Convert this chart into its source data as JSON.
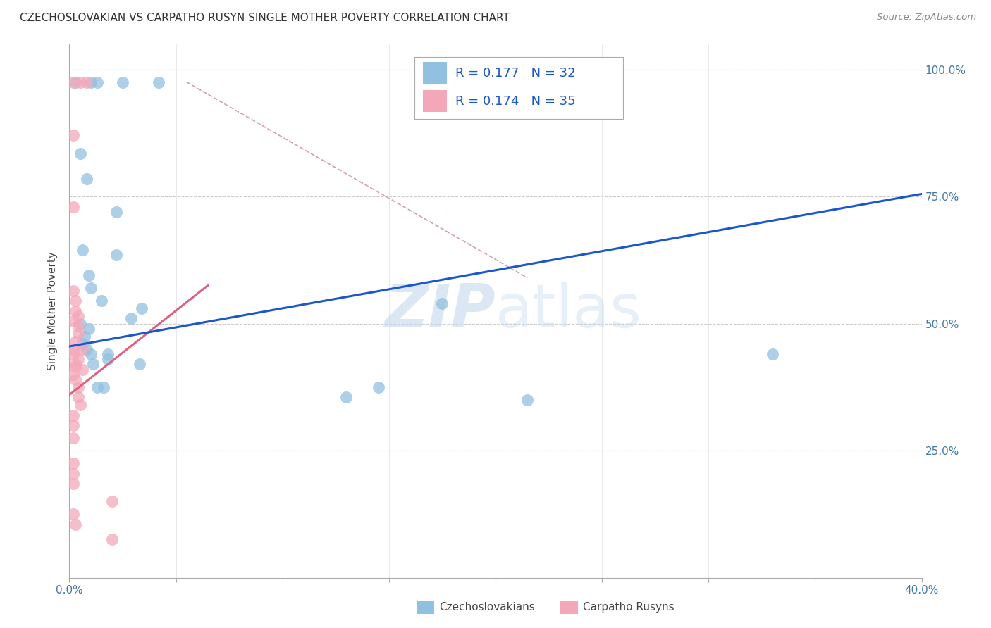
{
  "title": "CZECHOSLOVAKIAN VS CARPATHO RUSYN SINGLE MOTHER POVERTY CORRELATION CHART",
  "source": "Source: ZipAtlas.com",
  "ylabel": "Single Mother Poverty",
  "xlim": [
    0.0,
    0.4
  ],
  "ylim": [
    0.0,
    1.05
  ],
  "y_ticks": [
    0.25,
    0.5,
    0.75,
    1.0
  ],
  "y_tick_labels": [
    "25.0%",
    "50.0%",
    "75.0%",
    "100.0%"
  ],
  "x_ticks": [
    0.0,
    0.05,
    0.1,
    0.15,
    0.2,
    0.25,
    0.3,
    0.35,
    0.4
  ],
  "x_tick_show_labels": [
    true,
    false,
    false,
    false,
    false,
    false,
    false,
    false,
    true
  ],
  "legend_text1": "R = 0.177   N = 32",
  "legend_text2": "R = 0.174   N = 35",
  "blue_color": "#92c0e0",
  "pink_color": "#f4a7b9",
  "blue_line_color": "#1a56cc",
  "pink_line_color": "#e06080",
  "diag_line_color": "#d0a0a8",
  "watermark": "ZIPatlas",
  "watermark_zip_color": "#c8d8ee",
  "watermark_atlas_color": "#c0c8d8",
  "blue_scatter": [
    [
      0.003,
      0.975
    ],
    [
      0.01,
      0.975
    ],
    [
      0.013,
      0.975
    ],
    [
      0.025,
      0.975
    ],
    [
      0.042,
      0.975
    ],
    [
      0.005,
      0.835
    ],
    [
      0.022,
      0.72
    ],
    [
      0.006,
      0.645
    ],
    [
      0.022,
      0.635
    ],
    [
      0.009,
      0.595
    ],
    [
      0.01,
      0.57
    ],
    [
      0.015,
      0.545
    ],
    [
      0.034,
      0.53
    ],
    [
      0.029,
      0.51
    ],
    [
      0.005,
      0.5
    ],
    [
      0.009,
      0.49
    ],
    [
      0.006,
      0.46
    ],
    [
      0.008,
      0.45
    ],
    [
      0.01,
      0.44
    ],
    [
      0.018,
      0.44
    ],
    [
      0.018,
      0.43
    ],
    [
      0.011,
      0.42
    ],
    [
      0.033,
      0.42
    ],
    [
      0.013,
      0.375
    ],
    [
      0.016,
      0.375
    ],
    [
      0.13,
      0.355
    ],
    [
      0.145,
      0.375
    ],
    [
      0.175,
      0.54
    ],
    [
      0.215,
      0.35
    ],
    [
      0.33,
      0.44
    ],
    [
      0.008,
      0.785
    ],
    [
      0.007,
      0.475
    ]
  ],
  "pink_scatter": [
    [
      0.002,
      0.975
    ],
    [
      0.005,
      0.975
    ],
    [
      0.008,
      0.975
    ],
    [
      0.002,
      0.87
    ],
    [
      0.002,
      0.73
    ],
    [
      0.002,
      0.565
    ],
    [
      0.003,
      0.545
    ],
    [
      0.003,
      0.525
    ],
    [
      0.004,
      0.515
    ],
    [
      0.002,
      0.505
    ],
    [
      0.004,
      0.495
    ],
    [
      0.004,
      0.48
    ],
    [
      0.003,
      0.465
    ],
    [
      0.002,
      0.45
    ],
    [
      0.006,
      0.45
    ],
    [
      0.002,
      0.44
    ],
    [
      0.004,
      0.43
    ],
    [
      0.003,
      0.42
    ],
    [
      0.003,
      0.415
    ],
    [
      0.006,
      0.41
    ],
    [
      0.002,
      0.4
    ],
    [
      0.003,
      0.39
    ],
    [
      0.004,
      0.375
    ],
    [
      0.004,
      0.355
    ],
    [
      0.005,
      0.34
    ],
    [
      0.002,
      0.32
    ],
    [
      0.002,
      0.3
    ],
    [
      0.002,
      0.275
    ],
    [
      0.002,
      0.225
    ],
    [
      0.002,
      0.205
    ],
    [
      0.002,
      0.185
    ],
    [
      0.02,
      0.15
    ],
    [
      0.002,
      0.125
    ],
    [
      0.003,
      0.105
    ],
    [
      0.02,
      0.075
    ]
  ],
  "blue_trend_x": [
    0.0,
    0.4
  ],
  "blue_trend_y": [
    0.455,
    0.755
  ],
  "pink_trend_x": [
    0.0,
    0.065
  ],
  "pink_trend_y": [
    0.36,
    0.575
  ],
  "diag_line_x": [
    0.055,
    0.215
  ],
  "diag_line_y": [
    0.975,
    0.59
  ]
}
